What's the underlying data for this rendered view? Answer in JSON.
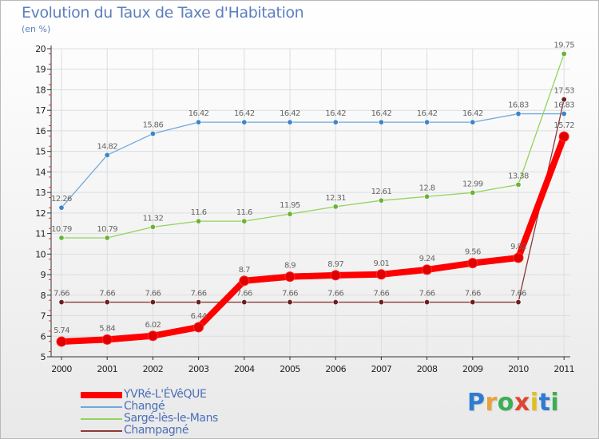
{
  "header": {
    "title": "Evolution du Taux de Taxe d'Habitation",
    "subtitle": "(en %)"
  },
  "logo": {
    "text": "Proxiti",
    "letter_colors": [
      "#2e7bd0",
      "#e8a23a",
      "#3cae52",
      "#e0462f",
      "#e0c020",
      "#2e7bd0",
      "#3cae52"
    ]
  },
  "chart_data": {
    "type": "line",
    "x": [
      "2000",
      "2001",
      "2002",
      "2003",
      "2004",
      "2005",
      "2006",
      "2007",
      "2008",
      "2009",
      "2010",
      "2011"
    ],
    "yticks": [
      "5",
      "6",
      "7",
      "8",
      "9",
      "10",
      "11",
      "12",
      "13",
      "14",
      "15",
      "16",
      "17",
      "18",
      "19",
      "20"
    ],
    "ylim": [
      5,
      20
    ],
    "grid": true,
    "legend_position": "bottom-left",
    "series": [
      {
        "name": "YVRé-L'ÉVêQUE",
        "color": "#ff0000",
        "marker_color": "#e00000",
        "emphasis": true,
        "values": [
          5.74,
          5.84,
          6.02,
          6.44,
          8.7,
          8.9,
          8.97,
          9.01,
          9.24,
          9.56,
          9.82,
          15.72
        ],
        "labels": [
          "5.74",
          "5.84",
          "6.02",
          "6.44",
          "8.7",
          "8.9",
          "8.97",
          "9.01",
          "9.24",
          "9.56",
          "9.82",
          "15.72"
        ]
      },
      {
        "name": "Changé",
        "color": "#6fa8dc",
        "marker_color": "#3d85c6",
        "emphasis": false,
        "values": [
          12.26,
          14.82,
          15.86,
          16.42,
          16.42,
          16.42,
          16.42,
          16.42,
          16.42,
          16.42,
          16.83,
          16.83
        ],
        "labels": [
          "12.26",
          "14.82",
          "15.86",
          "16.42",
          "16.42",
          "16.42",
          "16.42",
          "16.42",
          "16.42",
          "16.42",
          "16.83",
          "16.83"
        ]
      },
      {
        "name": "Sargé-lès-le-Mans",
        "color": "#93d35a",
        "marker_color": "#6ab23a",
        "emphasis": false,
        "values": [
          10.79,
          10.79,
          11.32,
          11.6,
          11.6,
          11.95,
          12.31,
          12.61,
          12.8,
          12.99,
          13.38,
          19.75
        ],
        "labels": [
          "10.79",
          "10.79",
          "11.32",
          "11.6",
          "11.6",
          "11.95",
          "12.31",
          "12.61",
          "12.8",
          "12.99",
          "13.38",
          "19.75"
        ]
      },
      {
        "name": "Champagné",
        "color": "#8b3a3a",
        "marker_color": "#6d1f1f",
        "emphasis": false,
        "values": [
          7.66,
          7.66,
          7.66,
          7.66,
          7.66,
          7.66,
          7.66,
          7.66,
          7.66,
          7.66,
          7.66,
          17.53
        ],
        "labels": [
          "7.66",
          "7.66",
          "7.66",
          "7.66",
          "7.66",
          "7.66",
          "7.66",
          "7.66",
          "7.66",
          "7.66",
          "7.66",
          "17.53"
        ]
      }
    ]
  }
}
